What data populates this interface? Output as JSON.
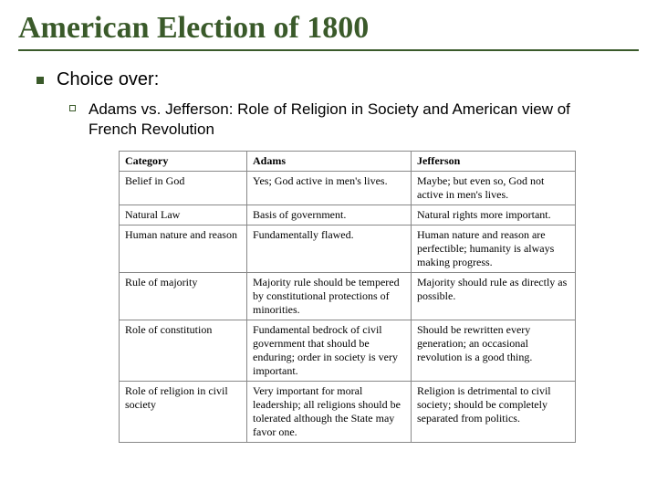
{
  "title": "American Election of 1800",
  "bullet1": "Choice over:",
  "sub1": "Adams vs. Jefferson: Role of Religion in Society and American view of French Revolution",
  "table": {
    "headers": [
      "Category",
      "Adams",
      "Jefferson"
    ],
    "rows": [
      [
        "Belief in God",
        "Yes; God active in men's lives.",
        "Maybe; but even so, God not active in men's lives."
      ],
      [
        "Natural Law",
        "Basis of government.",
        "Natural rights more important."
      ],
      [
        "Human nature and reason",
        "Fundamentally flawed.",
        "Human nature and reason are perfectible; humanity is always making progress."
      ],
      [
        "Rule of majority",
        "Majority rule should be tempered by constitutional protections of minorities.",
        "Majority should rule as directly as possible."
      ],
      [
        "Role of constitution",
        "Fundamental bedrock of civil government that should be enduring; order in society is very important.",
        "Should be rewritten every generation; an occasional revolution is a good thing."
      ],
      [
        "Role of religion in civil society",
        "Very important for moral leadership; all religions should be tolerated although the State may favor one.",
        "Religion is detrimental to civil society; should be completely separated from politics."
      ]
    ]
  },
  "colors": {
    "accent": "#3a5a2a",
    "border": "#888888",
    "bg": "#ffffff"
  }
}
